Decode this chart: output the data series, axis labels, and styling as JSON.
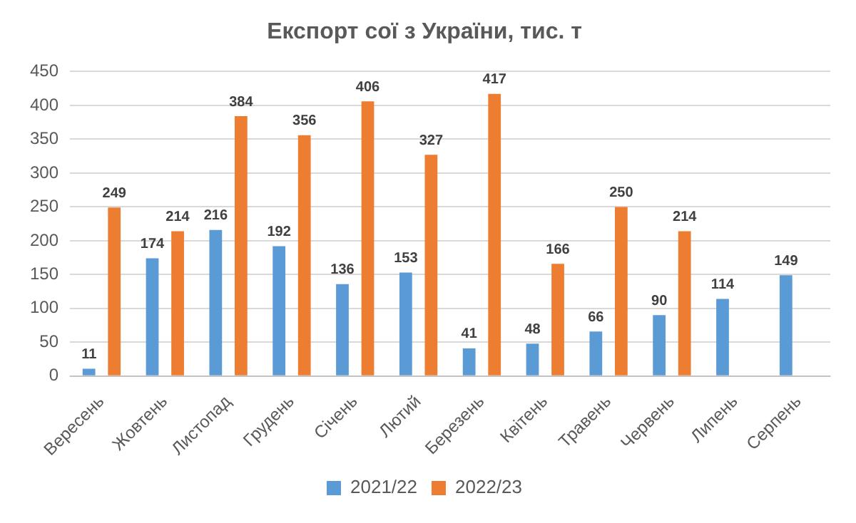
{
  "chart_data": {
    "type": "bar",
    "title": "Експорт сої з України, тис. т",
    "categories": [
      "Вересень",
      "Жовтень",
      "Листопад",
      "Грудень",
      "Січень",
      "Лютий",
      "Березень",
      "Квітень",
      "Травень",
      "Червень",
      "Липень",
      "Серпень"
    ],
    "series": [
      {
        "name": "2021/22",
        "color": "#5b9bd5",
        "values": [
          11,
          174,
          216,
          192,
          136,
          153,
          41,
          48,
          66,
          90,
          114,
          149
        ]
      },
      {
        "name": "2022/23",
        "color": "#ed7d31",
        "values": [
          249,
          214,
          384,
          356,
          406,
          327,
          417,
          166,
          250,
          214,
          null,
          null
        ]
      }
    ],
    "ylim": [
      0,
      450
    ],
    "yticks": [
      0,
      50,
      100,
      150,
      200,
      250,
      300,
      350,
      400,
      450
    ],
    "grid": "y",
    "legend": "bottom",
    "data_labels": true
  }
}
